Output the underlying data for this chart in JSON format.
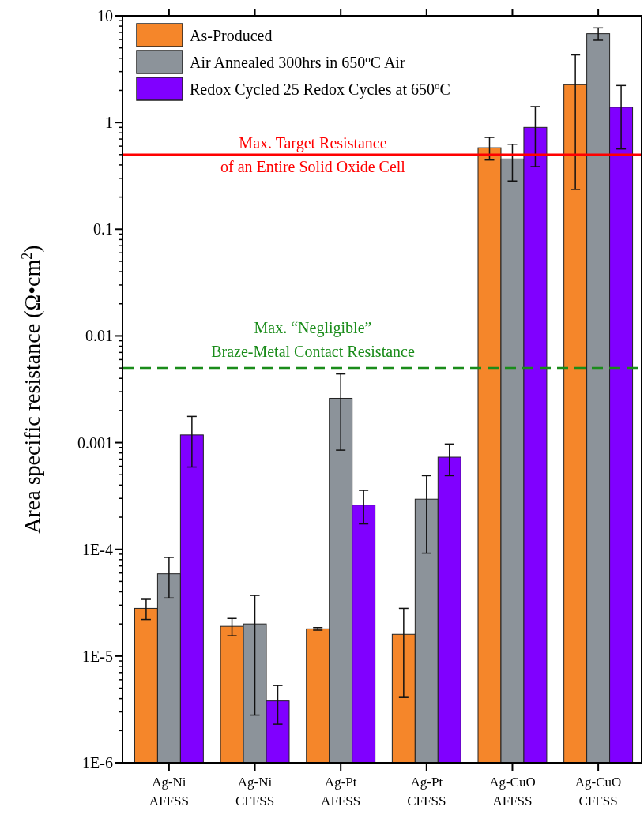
{
  "chart_data": {
    "type": "bar",
    "ylabel": "Area specific resistance (Ω•cm$^{2}$)",
    "categories": [
      "Ag-Ni\nAFFSS",
      "Ag-Ni\nCFFSS",
      "Ag-Pt\nAFFSS",
      "Ag-Pt\nCFFSS",
      "Ag-CuO\nAFFSS",
      "Ag-CuO\nCFFSS"
    ],
    "series": [
      {
        "name": "As-Produced",
        "color": "#f5862a",
        "values": [
          2.8e-05,
          1.9e-05,
          1.8e-05,
          1.6e-05,
          0.58,
          2.26
        ],
        "errors": [
          [
            2.2e-05,
            3.4e-05
          ],
          [
            1.55e-05,
            2.25e-05
          ],
          [
            1.75e-05,
            1.85e-05
          ],
          [
            4.1e-06,
            2.8e-05
          ],
          [
            0.445,
            0.725
          ],
          [
            0.236,
            4.3
          ]
        ]
      },
      {
        "name": "Air Annealed 300hrs in 650$^{o}$C Air",
        "color": "#8c939a",
        "values": [
          5.9e-05,
          2e-05,
          0.0026,
          0.000295,
          0.455,
          6.8
        ],
        "errors": [
          [
            3.5e-05,
            8.4e-05
          ],
          [
            2.8e-06,
            3.7e-05
          ],
          [
            0.00085,
            0.0044
          ],
          [
            9.2e-05,
            0.00049
          ],
          [
            0.283,
            0.625
          ],
          [
            5.9,
            7.7
          ]
        ]
      },
      {
        "name": "Redox Cycled 25 Redox Cycles at 650$^{o}$C",
        "color": "#8000ff",
        "values": [
          0.00118,
          3.8e-06,
          0.00026,
          0.00073,
          0.9,
          1.39
        ],
        "errors": [
          [
            0.00059,
            0.00176
          ],
          [
            2.3e-06,
            5.3e-06
          ],
          [
            0.000173,
            0.000357
          ],
          [
            0.00049,
            0.00097
          ],
          [
            0.386,
            1.41
          ],
          [
            0.565,
            2.22
          ]
        ]
      }
    ],
    "log": "y",
    "ylim": [
      1e-06,
      10
    ],
    "yticks": [
      {
        "value": 1e-06,
        "label": "1E-6"
      },
      {
        "value": 1e-05,
        "label": "1E-5"
      },
      {
        "value": 0.0001,
        "label": "1E-4"
      },
      0.001,
      0.01,
      0.1,
      1,
      10
    ],
    "ref_lines": [
      {
        "axis": "y",
        "value": 0.5,
        "label": "Max. Target Resistance\nof an Entire Solid Oxide Cell",
        "color": "#ff0000",
        "line_style": "solid"
      },
      {
        "axis": "y",
        "value": 0.005,
        "label": "Max. “Negligible”\nBraze-Metal Contact Resistance",
        "color": "#1a8c1a",
        "line_style": "dashed"
      }
    ],
    "legend": "top left",
    "grid": false
  }
}
